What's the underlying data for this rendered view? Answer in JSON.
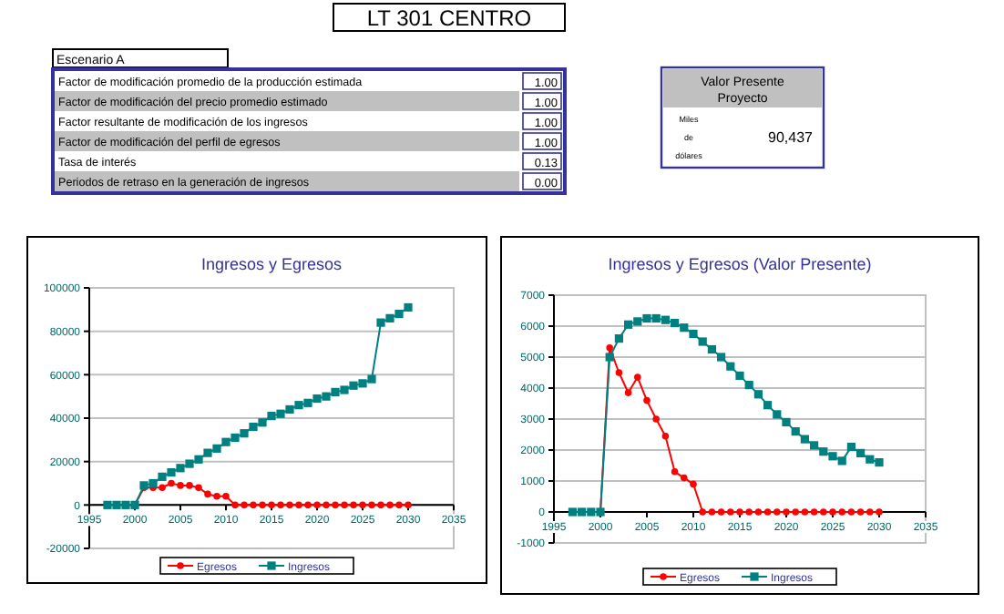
{
  "chart_data": [
    {
      "type": "other",
      "title": "LT 301 CENTRO",
      "subtitle": "Escenario A",
      "categories": [
        "Factor de modificación promedio de la producción estimada",
        "Factor de modificación del precio promedio estimado",
        "Factor resultante de modificación de los ingresos",
        "Factor de modificación del perfil de egresos",
        "Tasa de interés",
        "Periodos de retraso en la generación de ingresos"
      ],
      "value_labels": [
        "1.00",
        "1.00",
        "1.00",
        "1.00",
        "0.13",
        "0.00"
      ],
      "annotations": [
        "Valor Presente Proyecto",
        "Miles de dólares",
        "90,437"
      ]
    },
    {
      "type": "line",
      "title": "Ingresos y Egresos",
      "x": [
        1997,
        1998,
        1999,
        2000,
        2001,
        2002,
        2003,
        2004,
        2005,
        2006,
        2007,
        2008,
        2009,
        2010,
        2011,
        2012,
        2013,
        2014,
        2015,
        2016,
        2017,
        2018,
        2019,
        2020,
        2021,
        2022,
        2023,
        2024,
        2025,
        2026,
        2027,
        2028,
        2029,
        2030
      ],
      "xlim": [
        1995,
        2035
      ],
      "xticks": [
        1995,
        2000,
        2005,
        2010,
        2015,
        2020,
        2025,
        2030,
        2035
      ],
      "ylim": [
        -20000,
        100000
      ],
      "yticks": [
        -20000,
        0,
        20000,
        40000,
        60000,
        80000,
        100000
      ],
      "grid": "y",
      "legend": "bottom",
      "series": [
        {
          "name": "Egresos",
          "color": "#ff0000",
          "marker": "circle",
          "values": [
            null,
            null,
            null,
            0,
            8000,
            8000,
            8000,
            10000,
            9000,
            9000,
            8000,
            5000,
            4000,
            4000,
            0,
            0,
            0,
            0,
            0,
            0,
            0,
            0,
            0,
            0,
            0,
            0,
            0,
            0,
            0,
            0,
            0,
            0,
            0,
            0
          ]
        },
        {
          "name": "Ingresos",
          "color": "#008080",
          "marker": "square",
          "values": [
            0,
            0,
            0,
            0,
            9000,
            10000,
            13000,
            15000,
            17000,
            19000,
            21000,
            24000,
            26000,
            29000,
            31000,
            33000,
            36000,
            38000,
            41000,
            42000,
            44000,
            46000,
            47000,
            49000,
            50000,
            52000,
            53000,
            55000,
            56000,
            58000,
            84000,
            86000,
            88000,
            91000
          ]
        }
      ]
    },
    {
      "type": "line",
      "title": "Ingresos y Egresos (Valor Presente)",
      "x": [
        1997,
        1998,
        1999,
        2000,
        2001,
        2002,
        2003,
        2004,
        2005,
        2006,
        2007,
        2008,
        2009,
        2010,
        2011,
        2012,
        2013,
        2014,
        2015,
        2016,
        2017,
        2018,
        2019,
        2020,
        2021,
        2022,
        2023,
        2024,
        2025,
        2026,
        2027,
        2028,
        2029,
        2030
      ],
      "xlim": [
        1995,
        2035
      ],
      "xticks": [
        1995,
        2000,
        2005,
        2010,
        2015,
        2020,
        2025,
        2030,
        2035
      ],
      "ylim": [
        -1000,
        7000
      ],
      "yticks": [
        -1000,
        0,
        1000,
        2000,
        3000,
        4000,
        5000,
        6000,
        7000
      ],
      "grid": "y",
      "legend": "bottom",
      "series": [
        {
          "name": "Egresos",
          "color": "#ff0000",
          "marker": "circle",
          "values": [
            null,
            null,
            null,
            0,
            5300,
            4500,
            3850,
            4350,
            3600,
            3000,
            2450,
            1300,
            1100,
            900,
            0,
            0,
            0,
            0,
            0,
            0,
            0,
            0,
            0,
            0,
            0,
            0,
            0,
            0,
            0,
            0,
            0,
            0,
            0,
            0
          ]
        },
        {
          "name": "Ingresos",
          "color": "#008080",
          "marker": "square",
          "values": [
            0,
            0,
            0,
            0,
            5000,
            5600,
            6050,
            6150,
            6250,
            6250,
            6200,
            6100,
            5950,
            5750,
            5500,
            5250,
            5000,
            4700,
            4400,
            4100,
            3800,
            3450,
            3150,
            2900,
            2600,
            2350,
            2150,
            1950,
            1800,
            1650,
            2100,
            1900,
            1700,
            1600
          ]
        }
      ]
    }
  ]
}
